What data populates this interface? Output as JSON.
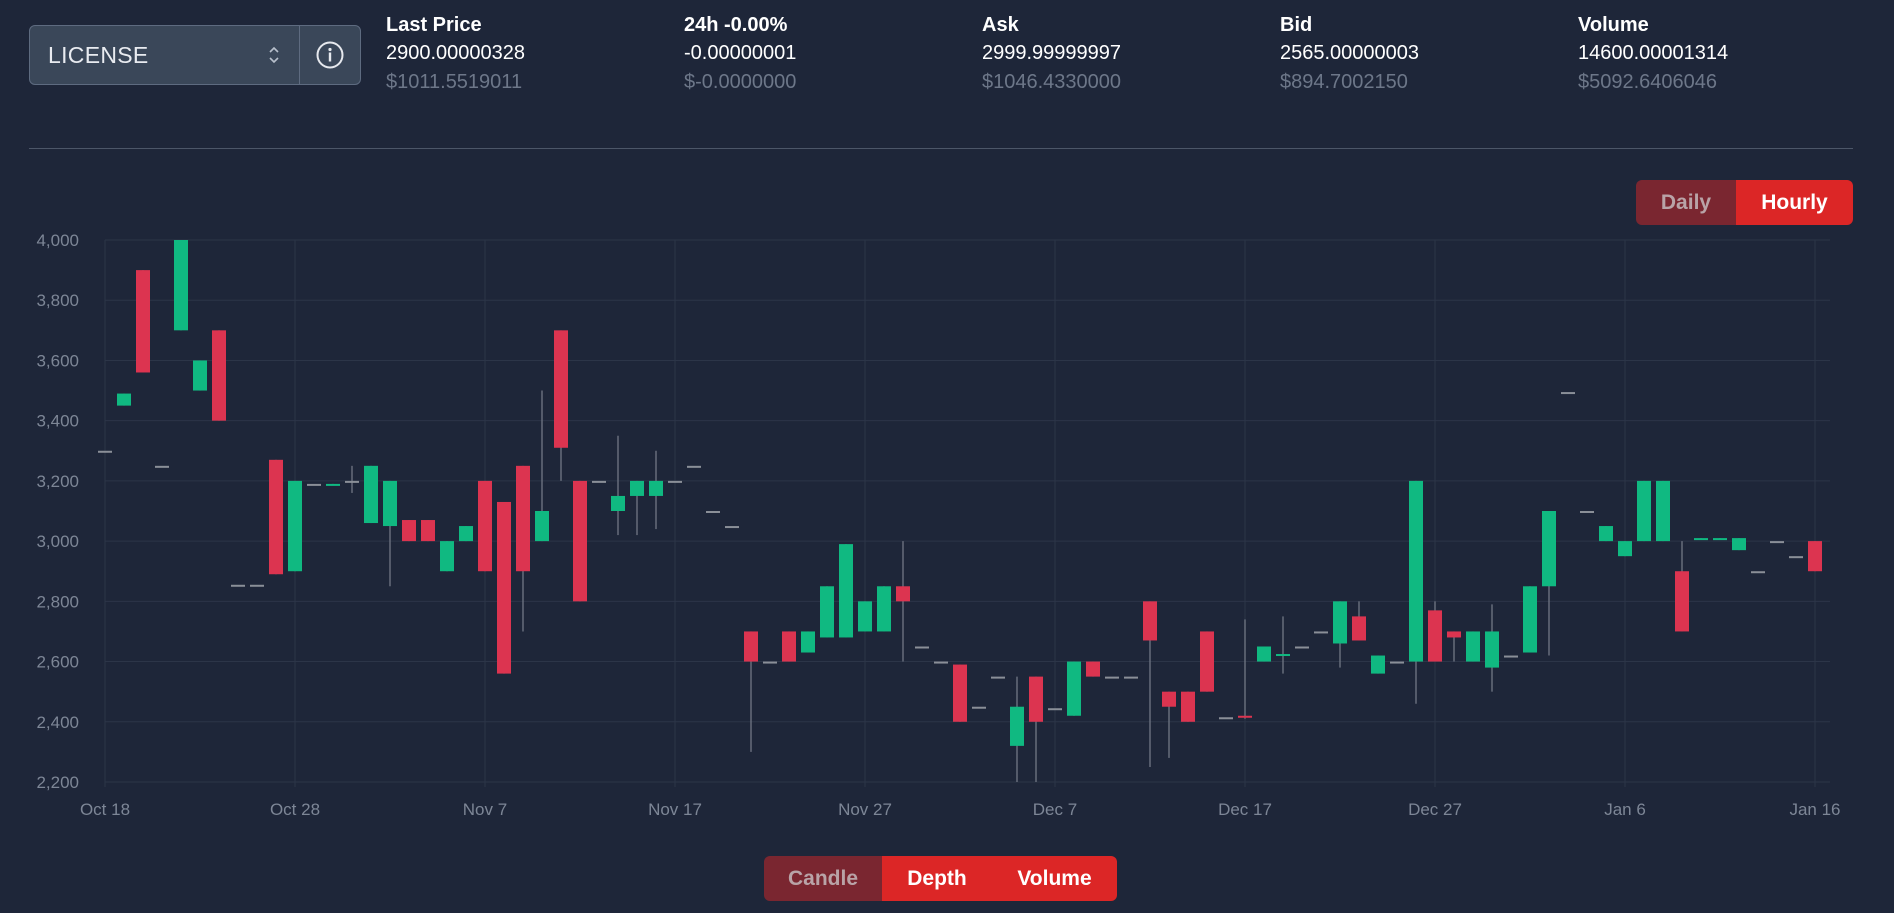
{
  "selector": {
    "value": "LICENSE",
    "updown_icon": "chevron-up-down-icon",
    "info_icon": "info-circle-icon"
  },
  "stats": [
    {
      "label": "Last Price",
      "value": "2900.00000328",
      "usd": "$1011.5519011"
    },
    {
      "label": "24h -0.00%",
      "value": "-0.00000001",
      "usd": "$-0.0000000"
    },
    {
      "label": "Ask",
      "value": "2999.99999997",
      "usd": "$1046.4330000"
    },
    {
      "label": "Bid",
      "value": "2565.00000003",
      "usd": "$894.7002150"
    },
    {
      "label": "Volume",
      "value": "14600.00001314",
      "usd": "$5092.6406046"
    }
  ],
  "interval_toggle": {
    "daily": "Daily",
    "hourly": "Hourly",
    "active": "Hourly"
  },
  "view_toggle": {
    "candle": "Candle",
    "depth": "Depth",
    "volume": "Volume",
    "active": [
      "Depth",
      "Volume"
    ]
  },
  "colors": {
    "up": "#10b981",
    "down": "#dc3450",
    "flat": "#8a8f98",
    "wick": "#6b7280",
    "grid": "#2c3548"
  },
  "chart_data": {
    "type": "candlestick",
    "x_start": "Oct 18",
    "x_ticks": [
      "Oct 18",
      "Oct 28",
      "Nov 7",
      "Nov 17",
      "Nov 27",
      "Dec 7",
      "Dec 17",
      "Dec 27",
      "Jan 6",
      "Jan 16"
    ],
    "y_ticks": [
      "4,000",
      "3,800",
      "3,600",
      "3,400",
      "3,200",
      "3,000",
      "2,800",
      "2,600",
      "2,400",
      "2,200"
    ],
    "ylim": [
      2200,
      4000
    ],
    "grid": true,
    "candles": [
      {
        "d": 0,
        "o": 3300,
        "h": 3300,
        "l": 3300,
        "c": 3300
      },
      {
        "d": 1,
        "o": 3450,
        "h": 3490,
        "l": 3450,
        "c": 3490
      },
      {
        "d": 2,
        "o": 3900,
        "h": 3900,
        "l": 3560,
        "c": 3560
      },
      {
        "d": 3,
        "o": 3250,
        "h": 3250,
        "l": 3250,
        "c": 3250
      },
      {
        "d": 4,
        "o": 3700,
        "h": 4000,
        "l": 3700,
        "c": 4000
      },
      {
        "d": 5,
        "o": 3500,
        "h": 3600,
        "l": 3500,
        "c": 3600
      },
      {
        "d": 6,
        "o": 3700,
        "h": 3700,
        "l": 3400,
        "c": 3400
      },
      {
        "d": 7,
        "o": 2855,
        "h": 2855,
        "l": 2855,
        "c": 2855
      },
      {
        "d": 8,
        "o": 2855,
        "h": 2855,
        "l": 2855,
        "c": 2855
      },
      {
        "d": 9,
        "o": 3270,
        "h": 3270,
        "l": 2890,
        "c": 2890
      },
      {
        "d": 10,
        "o": 2900,
        "h": 3200,
        "l": 2900,
        "c": 3200
      },
      {
        "d": 11,
        "o": 3190,
        "h": 3190,
        "l": 3190,
        "c": 3190
      },
      {
        "d": 12,
        "o": 3185,
        "h": 3190,
        "l": 3185,
        "c": 3190
      },
      {
        "d": 13,
        "o": 3200,
        "h": 3250,
        "l": 3160,
        "c": 3200
      },
      {
        "d": 14,
        "o": 3060,
        "h": 3250,
        "l": 3060,
        "c": 3250
      },
      {
        "d": 15,
        "o": 3050,
        "h": 3200,
        "l": 2850,
        "c": 3200
      },
      {
        "d": 16,
        "o": 3070,
        "h": 3070,
        "l": 3000,
        "c": 3000
      },
      {
        "d": 17,
        "o": 3070,
        "h": 3070,
        "l": 3000,
        "c": 3000
      },
      {
        "d": 18,
        "o": 2900,
        "h": 3000,
        "l": 2900,
        "c": 3000
      },
      {
        "d": 19,
        "o": 3000,
        "h": 3050,
        "l": 3000,
        "c": 3050
      },
      {
        "d": 20,
        "o": 3200,
        "h": 3200,
        "l": 2900,
        "c": 2900
      },
      {
        "d": 21,
        "o": 3130,
        "h": 3130,
        "l": 2560,
        "c": 2560
      },
      {
        "d": 22,
        "o": 3250,
        "h": 3250,
        "l": 2700,
        "c": 2900
      },
      {
        "d": 23,
        "o": 3000,
        "h": 3500,
        "l": 3000,
        "c": 3100
      },
      {
        "d": 24,
        "o": 3700,
        "h": 3700,
        "l": 3200,
        "c": 3310
      },
      {
        "d": 25,
        "o": 3200,
        "h": 3200,
        "l": 2800,
        "c": 2800
      },
      {
        "d": 26,
        "o": 3200,
        "h": 3200,
        "l": 3200,
        "c": 3200
      },
      {
        "d": 27,
        "o": 3100,
        "h": 3350,
        "l": 3020,
        "c": 3150
      },
      {
        "d": 28,
        "o": 3150,
        "h": 3200,
        "l": 3020,
        "c": 3200
      },
      {
        "d": 29,
        "o": 3150,
        "h": 3300,
        "l": 3040,
        "c": 3200
      },
      {
        "d": 30,
        "o": 3200,
        "h": 3200,
        "l": 3200,
        "c": 3200
      },
      {
        "d": 31,
        "o": 3250,
        "h": 3250,
        "l": 3250,
        "c": 3250
      },
      {
        "d": 32,
        "o": 3100,
        "h": 3100,
        "l": 3100,
        "c": 3100
      },
      {
        "d": 33,
        "o": 3050,
        "h": 3050,
        "l": 3050,
        "c": 3050
      },
      {
        "d": 34,
        "o": 2700,
        "h": 2700,
        "l": 2300,
        "c": 2600
      },
      {
        "d": 35,
        "o": 2600,
        "h": 2600,
        "l": 2600,
        "c": 2600
      },
      {
        "d": 36,
        "o": 2700,
        "h": 2700,
        "l": 2600,
        "c": 2600
      },
      {
        "d": 37,
        "o": 2630,
        "h": 2700,
        "l": 2630,
        "c": 2700
      },
      {
        "d": 38,
        "o": 2680,
        "h": 2850,
        "l": 2680,
        "c": 2850
      },
      {
        "d": 39,
        "o": 2680,
        "h": 2990,
        "l": 2680,
        "c": 2990
      },
      {
        "d": 40,
        "o": 2700,
        "h": 2800,
        "l": 2700,
        "c": 2800
      },
      {
        "d": 41,
        "o": 2700,
        "h": 2850,
        "l": 2700,
        "c": 2850
      },
      {
        "d": 42,
        "o": 2850,
        "h": 3000,
        "l": 2600,
        "c": 2800
      },
      {
        "d": 43,
        "o": 2650,
        "h": 2650,
        "l": 2650,
        "c": 2650
      },
      {
        "d": 44,
        "o": 2600,
        "h": 2600,
        "l": 2600,
        "c": 2600
      },
      {
        "d": 45,
        "o": 2590,
        "h": 2590,
        "l": 2400,
        "c": 2400
      },
      {
        "d": 46,
        "o": 2450,
        "h": 2450,
        "l": 2450,
        "c": 2450
      },
      {
        "d": 47,
        "o": 2550,
        "h": 2550,
        "l": 2550,
        "c": 2550
      },
      {
        "d": 48,
        "o": 2320,
        "h": 2550,
        "l": 2200,
        "c": 2450
      },
      {
        "d": 49,
        "o": 2550,
        "h": 2550,
        "l": 2200,
        "c": 2400
      },
      {
        "d": 50,
        "o": 2445,
        "h": 2445,
        "l": 2445,
        "c": 2445
      },
      {
        "d": 51,
        "o": 2420,
        "h": 2600,
        "l": 2420,
        "c": 2600
      },
      {
        "d": 52,
        "o": 2600,
        "h": 2600,
        "l": 2550,
        "c": 2550
      },
      {
        "d": 53,
        "o": 2550,
        "h": 2550,
        "l": 2550,
        "c": 2550
      },
      {
        "d": 54,
        "o": 2550,
        "h": 2550,
        "l": 2550,
        "c": 2550
      },
      {
        "d": 55,
        "o": 2800,
        "h": 2800,
        "l": 2250,
        "c": 2670
      },
      {
        "d": 56,
        "o": 2500,
        "h": 2500,
        "l": 2280,
        "c": 2450
      },
      {
        "d": 57,
        "o": 2500,
        "h": 2500,
        "l": 2400,
        "c": 2400
      },
      {
        "d": 58,
        "o": 2700,
        "h": 2700,
        "l": 2500,
        "c": 2500
      },
      {
        "d": 59,
        "o": 2415,
        "h": 2415,
        "l": 2415,
        "c": 2415
      },
      {
        "d": 60,
        "o": 2420,
        "h": 2740,
        "l": 2410,
        "c": 2415
      },
      {
        "d": 61,
        "o": 2600,
        "h": 2650,
        "l": 2600,
        "c": 2650
      },
      {
        "d": 62,
        "o": 2620,
        "h": 2750,
        "l": 2560,
        "c": 2625
      },
      {
        "d": 63,
        "o": 2650,
        "h": 2650,
        "l": 2650,
        "c": 2650
      },
      {
        "d": 64,
        "o": 2700,
        "h": 2700,
        "l": 2700,
        "c": 2700
      },
      {
        "d": 65,
        "o": 2660,
        "h": 2800,
        "l": 2580,
        "c": 2800
      },
      {
        "d": 66,
        "o": 2750,
        "h": 2800,
        "l": 2670,
        "c": 2670
      },
      {
        "d": 67,
        "o": 2560,
        "h": 2620,
        "l": 2560,
        "c": 2620
      },
      {
        "d": 68,
        "o": 2600,
        "h": 2600,
        "l": 2600,
        "c": 2600
      },
      {
        "d": 69,
        "o": 2600,
        "h": 3200,
        "l": 2460,
        "c": 3200
      },
      {
        "d": 70,
        "o": 2770,
        "h": 2800,
        "l": 2600,
        "c": 2600
      },
      {
        "d": 71,
        "o": 2700,
        "h": 2700,
        "l": 2600,
        "c": 2680
      },
      {
        "d": 72,
        "o": 2600,
        "h": 2700,
        "l": 2600,
        "c": 2700
      },
      {
        "d": 73,
        "o": 2580,
        "h": 2790,
        "l": 2500,
        "c": 2700
      },
      {
        "d": 74,
        "o": 2620,
        "h": 2620,
        "l": 2620,
        "c": 2620
      },
      {
        "d": 75,
        "o": 2630,
        "h": 2850,
        "l": 2630,
        "c": 2850
      },
      {
        "d": 76,
        "o": 2850,
        "h": 3100,
        "l": 2620,
        "c": 3100
      },
      {
        "d": 77,
        "o": 3495,
        "h": 3495,
        "l": 3495,
        "c": 3495
      },
      {
        "d": 78,
        "o": 3100,
        "h": 3100,
        "l": 3100,
        "c": 3100
      },
      {
        "d": 79,
        "o": 3000,
        "h": 3050,
        "l": 3000,
        "c": 3050
      },
      {
        "d": 80,
        "o": 2950,
        "h": 3000,
        "l": 2950,
        "c": 3000
      },
      {
        "d": 81,
        "o": 3000,
        "h": 3200,
        "l": 3000,
        "c": 3200
      },
      {
        "d": 82,
        "o": 3000,
        "h": 3200,
        "l": 3000,
        "c": 3200
      },
      {
        "d": 83,
        "o": 2900,
        "h": 3000,
        "l": 2700,
        "c": 2700
      },
      {
        "d": 84,
        "o": 3005,
        "h": 3010,
        "l": 3005,
        "c": 3010
      },
      {
        "d": 85,
        "o": 3005,
        "h": 3010,
        "l": 3005,
        "c": 3010
      },
      {
        "d": 86,
        "o": 2970,
        "h": 3010,
        "l": 2970,
        "c": 3010
      },
      {
        "d": 87,
        "o": 2900,
        "h": 2900,
        "l": 2900,
        "c": 2900
      },
      {
        "d": 88,
        "o": 3000,
        "h": 3000,
        "l": 3000,
        "c": 3000
      },
      {
        "d": 89,
        "o": 2950,
        "h": 2950,
        "l": 2950,
        "c": 2950
      },
      {
        "d": 90,
        "o": 3000,
        "h": 3000,
        "l": 2900,
        "c": 2900
      }
    ]
  }
}
